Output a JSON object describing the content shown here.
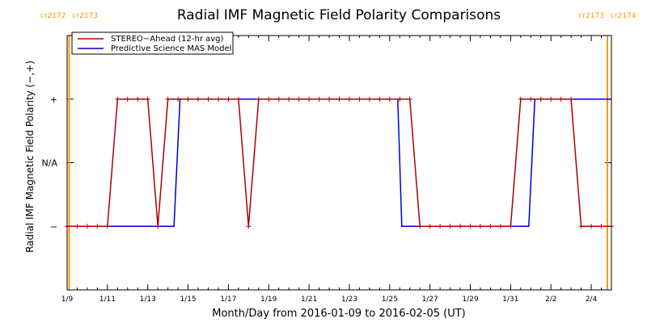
{
  "chart_data": {
    "type": "line",
    "title": "Radial IMF Magnetic Field Polarity Comparisons",
    "xlabel": "Month/Day from 2016-01-09 to 2016-02-05 (UT)",
    "ylabel": "Radial IMF Magnetic Field Polarity (−,+)",
    "x_unit": "day offset from 2016-01-09 00:00 UT",
    "xlim": [
      0,
      27
    ],
    "ylim": [
      -2,
      2
    ],
    "x_ticks": [
      {
        "x": 0,
        "label": "1/9"
      },
      {
        "x": 2,
        "label": "1/11"
      },
      {
        "x": 4,
        "label": "1/13"
      },
      {
        "x": 6,
        "label": "1/15"
      },
      {
        "x": 8,
        "label": "1/17"
      },
      {
        "x": 10,
        "label": "1/19"
      },
      {
        "x": 12,
        "label": "1/21"
      },
      {
        "x": 14,
        "label": "1/23"
      },
      {
        "x": 16,
        "label": "1/25"
      },
      {
        "x": 18,
        "label": "1/27"
      },
      {
        "x": 20,
        "label": "1/29"
      },
      {
        "x": 22,
        "label": "1/31"
      },
      {
        "x": 24,
        "label": "2/2"
      },
      {
        "x": 26,
        "label": "2/4"
      }
    ],
    "y_ticks": [
      {
        "y": 1,
        "label": "+"
      },
      {
        "y": 0,
        "label": "N/A"
      },
      {
        "y": -1,
        "label": "−"
      }
    ],
    "rotations": [
      {
        "x": 0.1,
        "left": "cr2172",
        "right": "cr2173",
        "color": "#ff9900"
      },
      {
        "x": 26.8,
        "left": "cr2173",
        "right": "cr2174",
        "color": "#ff9900"
      }
    ],
    "legend": {
      "position": "top-left"
    },
    "grid": false,
    "series": [
      {
        "name": "STEREO−Ahead (12-hr avg)",
        "color": "#aa0000",
        "marker": "plus",
        "points": [
          [
            0.0,
            -1
          ],
          [
            0.5,
            -1
          ],
          [
            1.0,
            -1
          ],
          [
            1.5,
            -1
          ],
          [
            2.0,
            -1
          ],
          [
            2.5,
            1
          ],
          [
            3.0,
            1
          ],
          [
            3.5,
            1
          ],
          [
            4.0,
            1
          ],
          [
            4.5,
            -1
          ],
          [
            5.0,
            1
          ],
          [
            5.5,
            1
          ],
          [
            6.0,
            1
          ],
          [
            6.5,
            1
          ],
          [
            7.0,
            1
          ],
          [
            7.5,
            1
          ],
          [
            8.0,
            1
          ],
          [
            8.5,
            1
          ],
          [
            9.0,
            -1
          ],
          [
            9.5,
            1
          ],
          [
            10.0,
            1
          ],
          [
            10.5,
            1
          ],
          [
            11.0,
            1
          ],
          [
            11.5,
            1
          ],
          [
            12.0,
            1
          ],
          [
            12.5,
            1
          ],
          [
            13.0,
            1
          ],
          [
            13.5,
            1
          ],
          [
            14.0,
            1
          ],
          [
            14.5,
            1
          ],
          [
            15.0,
            1
          ],
          [
            15.5,
            1
          ],
          [
            16.0,
            1
          ],
          [
            16.5,
            1
          ],
          [
            17.0,
            1
          ],
          [
            17.5,
            -1
          ],
          [
            18.0,
            -1
          ],
          [
            18.5,
            -1
          ],
          [
            19.0,
            -1
          ],
          [
            19.5,
            -1
          ],
          [
            20.0,
            -1
          ],
          [
            20.5,
            -1
          ],
          [
            21.0,
            -1
          ],
          [
            21.5,
            -1
          ],
          [
            22.0,
            -1
          ],
          [
            22.5,
            1
          ],
          [
            23.0,
            1
          ],
          [
            23.5,
            1
          ],
          [
            24.0,
            1
          ],
          [
            24.5,
            1
          ],
          [
            25.0,
            1
          ],
          [
            25.5,
            -1
          ],
          [
            26.0,
            -1
          ],
          [
            26.5,
            -1
          ],
          [
            27.0,
            -1
          ]
        ]
      },
      {
        "name": "Predictive Science MAS Model",
        "color": "#0000cc",
        "marker": "none",
        "points": [
          [
            0.0,
            -1
          ],
          [
            5.3,
            -1
          ],
          [
            5.6,
            1
          ],
          [
            16.4,
            1
          ],
          [
            16.6,
            -1
          ],
          [
            22.9,
            -1
          ],
          [
            23.2,
            1
          ],
          [
            27.0,
            1
          ]
        ]
      }
    ]
  }
}
